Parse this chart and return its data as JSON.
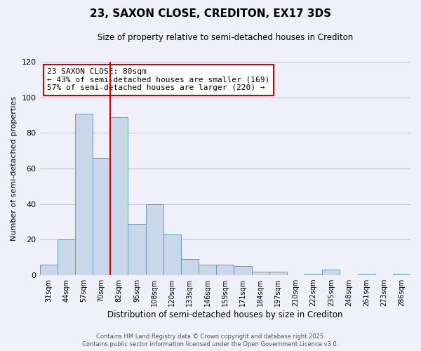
{
  "title": "23, SAXON CLOSE, CREDITON, EX17 3DS",
  "subtitle": "Size of property relative to semi-detached houses in Crediton",
  "xlabel": "Distribution of semi-detached houses by size in Crediton",
  "ylabel": "Number of semi-detached properties",
  "bin_labels": [
    "31sqm",
    "44sqm",
    "57sqm",
    "70sqm",
    "82sqm",
    "95sqm",
    "108sqm",
    "120sqm",
    "133sqm",
    "146sqm",
    "159sqm",
    "171sqm",
    "184sqm",
    "197sqm",
    "210sqm",
    "222sqm",
    "235sqm",
    "248sqm",
    "261sqm",
    "273sqm",
    "286sqm"
  ],
  "bar_values": [
    6,
    20,
    91,
    66,
    89,
    29,
    40,
    23,
    9,
    6,
    6,
    5,
    2,
    2,
    0,
    1,
    3,
    0,
    1,
    0,
    1
  ],
  "bar_color": "#c8d8ea",
  "bar_edge_color": "#6699bb",
  "vline_x_index": 4,
  "vline_color": "#cc0000",
  "annotation_line1": "23 SAXON CLOSE: 80sqm",
  "annotation_line2": "← 43% of semi-detached houses are smaller (169)",
  "annotation_line3": "57% of semi-detached houses are larger (220) →",
  "annotation_box_color": "#ffffff",
  "annotation_box_edge": "#cc0000",
  "ylim": [
    0,
    120
  ],
  "footnote1": "Contains HM Land Registry data © Crown copyright and database right 2025.",
  "footnote2": "Contains public sector information licensed under the Open Government Licence v3.0.",
  "background_color": "#f0f0fa",
  "grid_color": "#c8c8dc",
  "title_fontsize": 11,
  "subtitle_fontsize": 8.5,
  "ylabel_fontsize": 8,
  "xlabel_fontsize": 8.5,
  "tick_fontsize": 7,
  "annot_fontsize": 8,
  "footnote_fontsize": 6
}
